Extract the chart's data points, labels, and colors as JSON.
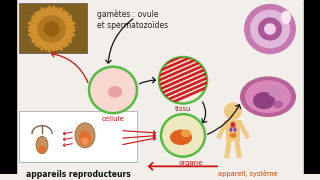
{
  "bg_color": "#f2efea",
  "text_gametes": "gamètes : ovule\net spermatozoïdes",
  "text_cellule": "cellule",
  "text_tissu": "tissu",
  "text_organe": "organe",
  "text_appareils": "appareils reproducteurs",
  "text_appareil_systeme": "appareil, système",
  "arrow_black": "#111111",
  "arrow_red": "#cc1111",
  "green_circle": "#55bb44",
  "cell_pink_bg": "#f8d8d0",
  "cell_nucleus": "#e8a0a0",
  "tissu_red1": "#cc2222",
  "tissu_red2": "#dd4444",
  "tissu_bg": "#fce8e0",
  "organe_bg": "#eee8c0",
  "organe_inner": "#e06020",
  "organe_highlight": "#f0a040",
  "histo_top_outer": "#c878b0",
  "histo_top_mid": "#d8a0c8",
  "histo_top_inner": "#aa5898",
  "histo_bot_outer": "#b86098",
  "histo_bot_mid": "#c880b0",
  "histo_bot_dark": "#904080",
  "photo_bg": "#806020",
  "photo_cell": "#d09030",
  "photo_spiky": "#b07820",
  "box_bg": "#ffffff",
  "box_edge": "#aaaaaa",
  "body_skin": "#f0c880",
  "body_organ_red": "#cc3333",
  "body_organ_purple": "#8844aa",
  "body_organ_orange": "#ee7722",
  "repro_tan": "#c8905a",
  "repro_orange": "#e07030"
}
